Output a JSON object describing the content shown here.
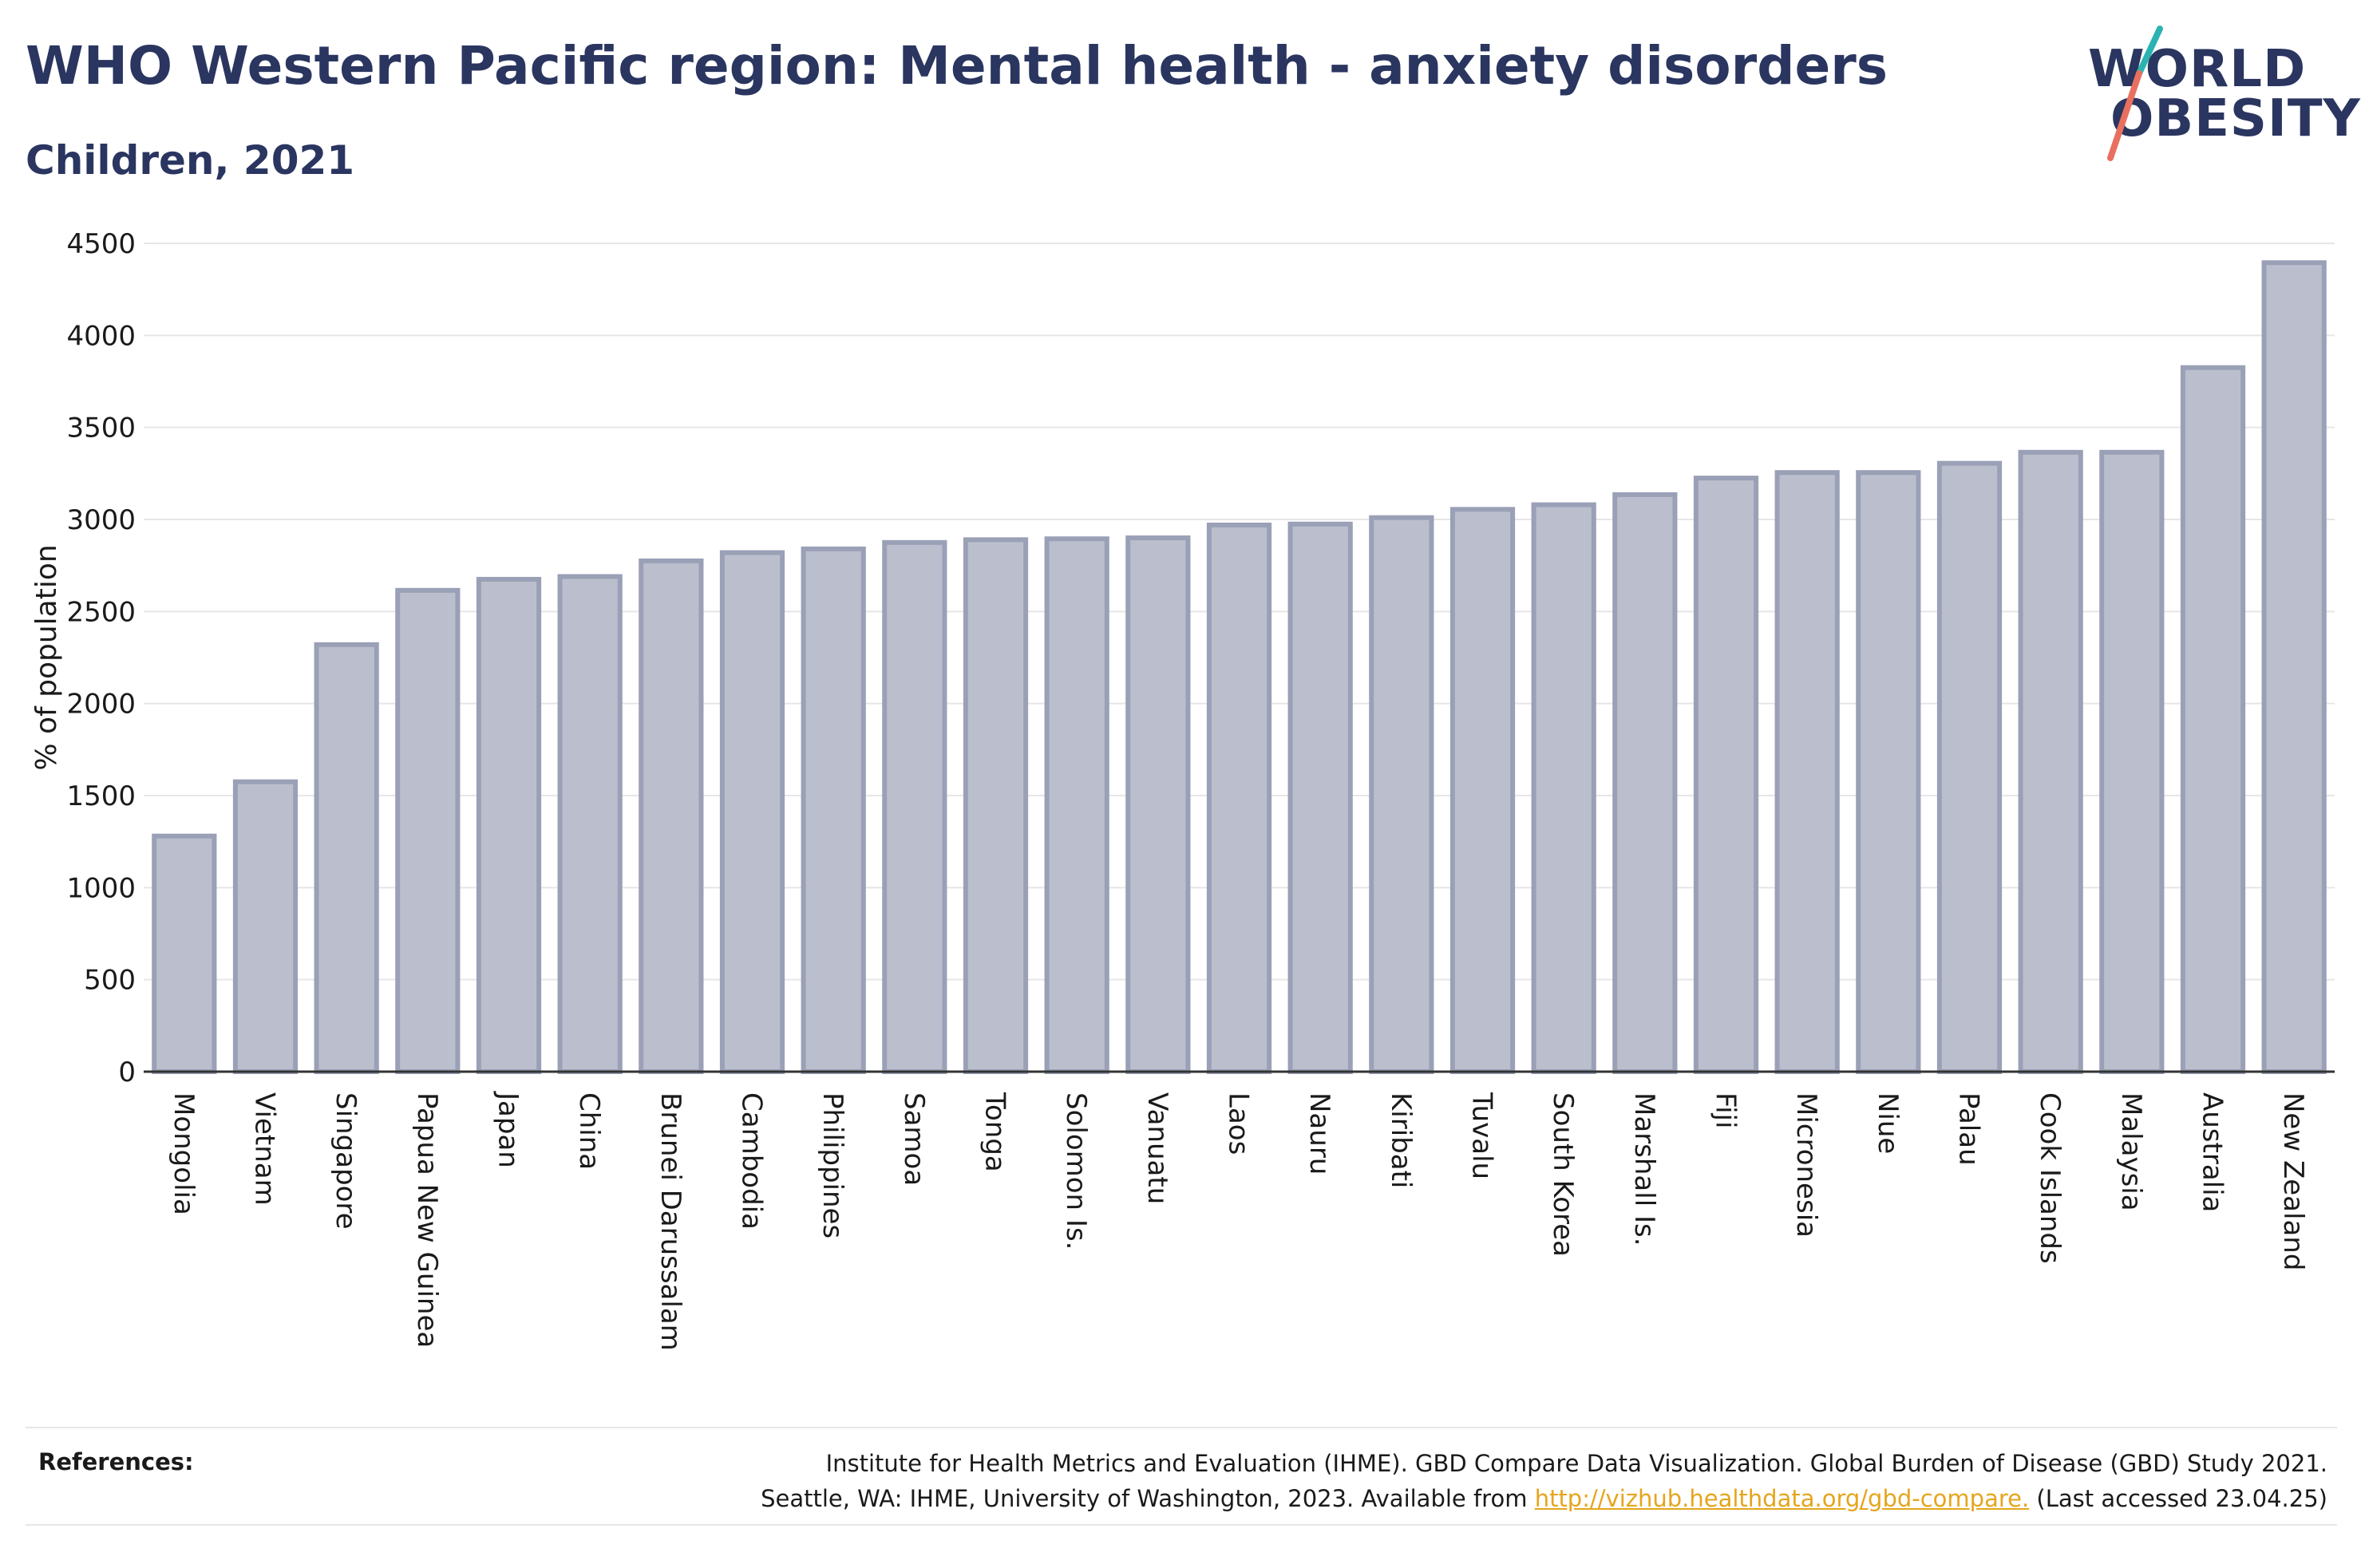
{
  "header": {
    "title": "WHO Western Pacific region: Mental health - anxiety disorders",
    "subtitle": "Children, 2021"
  },
  "logo": {
    "line1": "WORLD",
    "line2": "OBESITY",
    "colors": {
      "text": "#2a3560",
      "slash_teal": "#2bb3b1",
      "slash_red": "#e8705f"
    }
  },
  "chart_data": {
    "type": "bar",
    "ylabel": "% of population",
    "xlabel": "",
    "ylim": [
      0,
      4500
    ],
    "yticks": [
      0,
      500,
      1000,
      1500,
      2000,
      2500,
      3000,
      3500,
      4000,
      4500
    ],
    "grid": true,
    "categories": [
      "Mongolia",
      "Vietnam",
      "Singapore",
      "Papua New Guinea",
      "Japan",
      "China",
      "Brunei Darussalam",
      "Cambodia",
      "Philippines",
      "Samoa",
      "Tonga",
      "Solomon Is.",
      "Vanuatu",
      "Laos",
      "Nauru",
      "Kiribati",
      "Tuvalu",
      "South Korea",
      "Marshall Is.",
      "Fiji",
      "Micronesia",
      "Niue",
      "Palau",
      "Cook Islands",
      "Malaysia",
      "Australia",
      "New Zealand"
    ],
    "values": [
      1280,
      1575,
      2320,
      2615,
      2675,
      2690,
      2775,
      2820,
      2840,
      2875,
      2890,
      2895,
      2900,
      2970,
      2975,
      3010,
      3055,
      3080,
      3135,
      3225,
      3255,
      3255,
      3305,
      3365,
      3365,
      3825,
      4395
    ],
    "colors": {
      "bar_fill": "#bbbfcd",
      "bar_stroke": "#9aa0b6",
      "axis": "#333333",
      "grid": "#e6e6e6"
    }
  },
  "references": {
    "label": "References:",
    "line1": "Institute for Health Metrics and Evaluation (IHME). GBD Compare Data Visualization. Global Burden of Disease (GBD) Study 2021.",
    "line2_prefix": "Seattle, WA: IHME, University of Washington, 2023. Available from ",
    "link": "http://vizhub.healthdata.org/gbd-compare.",
    "line2_suffix": " (Last accessed 23.04.25)"
  }
}
